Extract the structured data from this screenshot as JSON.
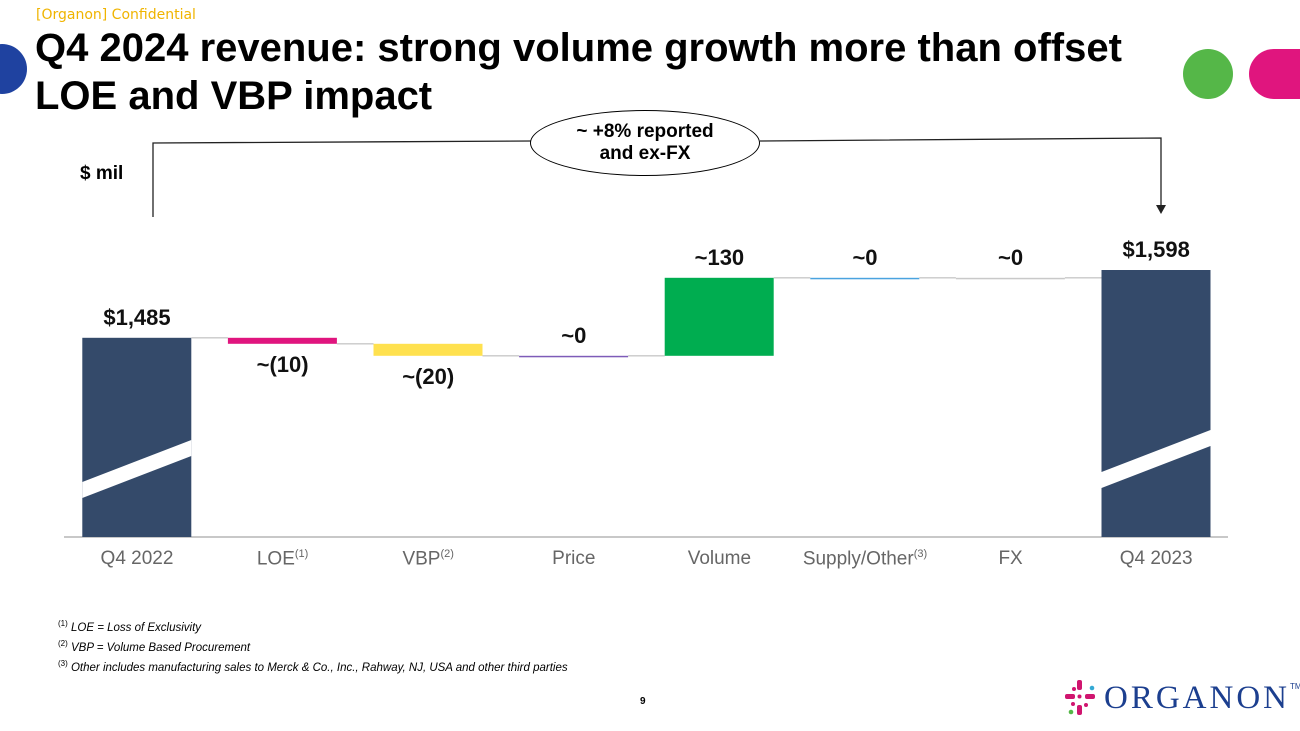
{
  "header": {
    "confidential": "[Organon] Confidential",
    "title": "Q4 2024 revenue: strong volume growth more than offset LOE and VBP impact",
    "unit": "$ mil",
    "callout": "~ +8% reported and ex-FX"
  },
  "chart_data": {
    "type": "waterfall",
    "title": "Q4 2024 revenue: strong volume growth more than offset LOE and VBP impact",
    "ylabel": "$ mil",
    "categories": [
      "Q4 2022",
      "LOE",
      "VBP",
      "Price",
      "Volume",
      "Supply/Other",
      "FX",
      "Q4 2023"
    ],
    "superscripts": [
      "",
      "(1)",
      "(2)",
      "",
      "",
      "(3)",
      "",
      ""
    ],
    "values": [
      1485,
      -10,
      -20,
      0,
      130,
      0,
      0,
      1598
    ],
    "kinds": [
      "total",
      "delta",
      "delta",
      "delta",
      "delta",
      "delta",
      "delta",
      "total"
    ],
    "labels": [
      "$1,485",
      "~(10)",
      "~(20)",
      "~0",
      "~130",
      "~0",
      "~0",
      "$1,598"
    ],
    "colors": [
      "#344a6a",
      "#e0157e",
      "#ffe14f",
      "#7e5cb8",
      "#00ad50",
      "#4aa3df",
      "#c9c9c9",
      "#344a6a"
    ],
    "axis_break": true
  },
  "footnotes": [
    {
      "mark": "(1)",
      "text": "LOE = Loss of Exclusivity"
    },
    {
      "mark": "(2)",
      "text": "VBP = Volume Based Procurement"
    },
    {
      "mark": "(3)",
      "text": "Other includes manufacturing sales to Merck & Co., Inc., Rahway, NJ, USA and other third parties"
    }
  ],
  "page_number": "9",
  "logo": {
    "text": "ORGANON",
    "tm": "TM"
  },
  "colors": {
    "blue_dot": "#1f42a0",
    "green_dot": "#55b748",
    "pink_dot": "#e0157e"
  }
}
